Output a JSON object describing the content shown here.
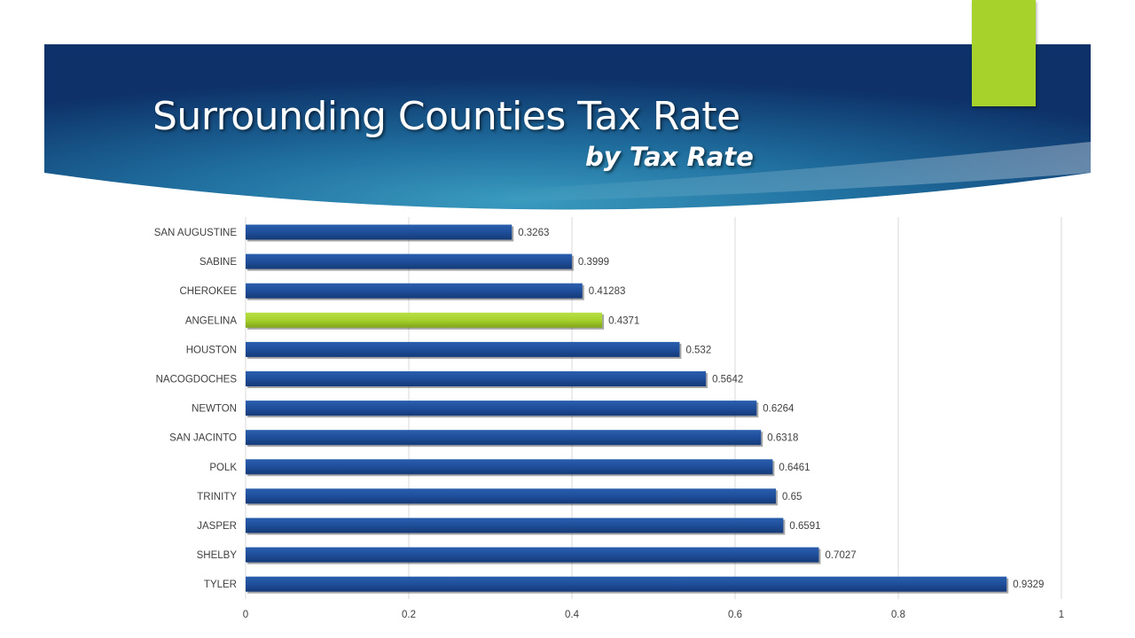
{
  "slide": {
    "title": "Surrounding Counties Tax Rate",
    "subtitle": "by Tax Rate"
  },
  "colors": {
    "bar": "#1f4e9a",
    "highlight": "#a6d22b",
    "accent": "#a6d22b",
    "banner_dark": "#0d3168",
    "banner_light": "#3a9bbf"
  },
  "chart_data": {
    "type": "bar",
    "orientation": "horizontal",
    "categories": [
      "SAN AUGUSTINE",
      "SABINE",
      "CHEROKEE",
      "ANGELINA",
      "HOUSTON",
      "NACOGDOCHES",
      "NEWTON",
      "SAN JACINTO",
      "POLK",
      "TRINITY",
      "JASPER",
      "SHELBY",
      "TYLER"
    ],
    "values": [
      0.3263,
      0.3999,
      0.41283,
      0.4371,
      0.532,
      0.5642,
      0.6264,
      0.6318,
      0.6461,
      0.65,
      0.6591,
      0.7027,
      0.9329
    ],
    "data_labels": [
      "0.3263",
      "0.3999",
      "0.41283",
      "0.4371",
      "0.532",
      "0.5642",
      "0.6264",
      "0.6318",
      "0.6461",
      "0.65",
      "0.6591",
      "0.7027",
      "0.9329"
    ],
    "highlight_category": "ANGELINA",
    "xlim": [
      0,
      1
    ],
    "x_ticks": [
      0,
      0.2,
      0.4,
      0.6,
      0.8,
      1
    ],
    "x_tick_labels": [
      "0",
      "0.2",
      "0.4",
      "0.6",
      "0.8",
      "1"
    ],
    "grid": true,
    "legend": "none"
  }
}
